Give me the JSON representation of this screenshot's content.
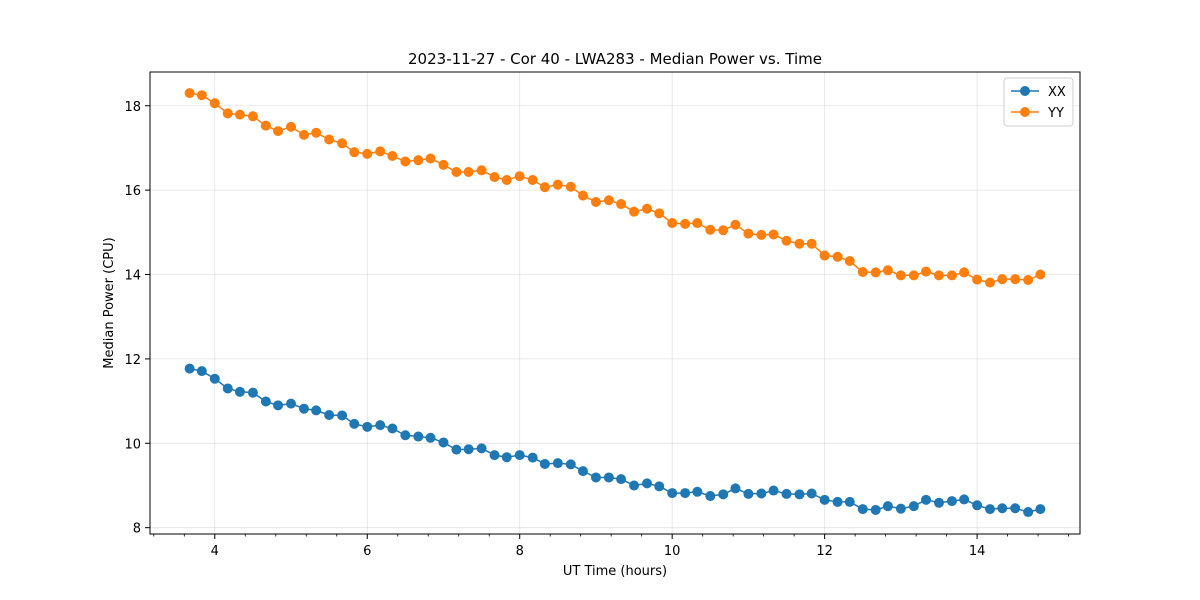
{
  "chart_data": {
    "type": "line",
    "title": "2023-11-27 - Cor 40 - LWA283 - Median Power vs. Time",
    "xlabel": "UT Time (hours)",
    "ylabel": "Median Power (CPU)",
    "xlim": [
      3.15,
      15.35
    ],
    "ylim": [
      7.85,
      18.8
    ],
    "xticks": [
      4,
      6,
      8,
      10,
      12,
      14
    ],
    "xtick_labels": [
      "4",
      "6",
      "8",
      "10",
      "12",
      "14"
    ],
    "yticks": [
      8,
      10,
      12,
      14,
      16,
      18
    ],
    "ytick_labels": [
      "8",
      "10",
      "12",
      "14",
      "16",
      "18"
    ],
    "grid": true,
    "legend_position": "top-right",
    "x": [
      3.67,
      3.83,
      4.0,
      4.17,
      4.33,
      4.5,
      4.67,
      4.83,
      5.0,
      5.17,
      5.33,
      5.5,
      5.67,
      5.83,
      6.0,
      6.17,
      6.33,
      6.5,
      6.67,
      6.83,
      7.0,
      7.17,
      7.33,
      7.5,
      7.67,
      7.83,
      8.0,
      8.17,
      8.33,
      8.5,
      8.67,
      8.83,
      9.0,
      9.17,
      9.33,
      9.5,
      9.67,
      9.83,
      10.0,
      10.17,
      10.33,
      10.5,
      10.67,
      10.83,
      11.0,
      11.17,
      11.33,
      11.5,
      11.67,
      11.83,
      12.0,
      12.17,
      12.33,
      12.5,
      12.67,
      12.83,
      13.0,
      13.17,
      13.33,
      13.5,
      13.67,
      13.83,
      14.0,
      14.17,
      14.33,
      14.5,
      14.67,
      14.83
    ],
    "series": [
      {
        "name": "XX",
        "color": "#1f77b4",
        "values": [
          11.77,
          11.71,
          11.53,
          11.3,
          11.22,
          11.2,
          10.99,
          10.9,
          10.94,
          10.82,
          10.78,
          10.67,
          10.66,
          10.46,
          10.39,
          10.43,
          10.35,
          10.19,
          10.16,
          10.13,
          10.02,
          9.85,
          9.86,
          9.88,
          9.72,
          9.67,
          9.72,
          9.66,
          9.51,
          9.53,
          9.5,
          9.34,
          9.19,
          9.19,
          9.15,
          9.0,
          9.05,
          8.98,
          8.82,
          8.82,
          8.85,
          8.75,
          8.79,
          8.93,
          8.8,
          8.81,
          8.88,
          8.8,
          8.79,
          8.81,
          8.66,
          8.61,
          8.61,
          8.44,
          8.42,
          8.51,
          8.45,
          8.51,
          8.66,
          8.59,
          8.63,
          8.67,
          8.53,
          8.44,
          8.46,
          8.46,
          8.37,
          8.44
        ]
      },
      {
        "name": "YY",
        "color": "#ff7f0e",
        "values": [
          18.3,
          18.25,
          18.06,
          17.82,
          17.79,
          17.75,
          17.53,
          17.4,
          17.5,
          17.31,
          17.36,
          17.2,
          17.11,
          16.9,
          16.86,
          16.92,
          16.81,
          16.68,
          16.71,
          16.75,
          16.6,
          16.43,
          16.43,
          16.47,
          16.31,
          16.24,
          16.33,
          16.24,
          16.07,
          16.13,
          16.08,
          15.87,
          15.72,
          15.76,
          15.67,
          15.49,
          15.56,
          15.45,
          15.22,
          15.2,
          15.22,
          15.06,
          15.05,
          15.18,
          14.97,
          14.94,
          14.95,
          14.8,
          14.73,
          14.73,
          14.45,
          14.42,
          14.32,
          14.06,
          14.05,
          14.1,
          13.98,
          13.98,
          14.07,
          13.98,
          13.98,
          14.05,
          13.88,
          13.81,
          13.89,
          13.89,
          13.87,
          14.0
        ]
      }
    ]
  }
}
